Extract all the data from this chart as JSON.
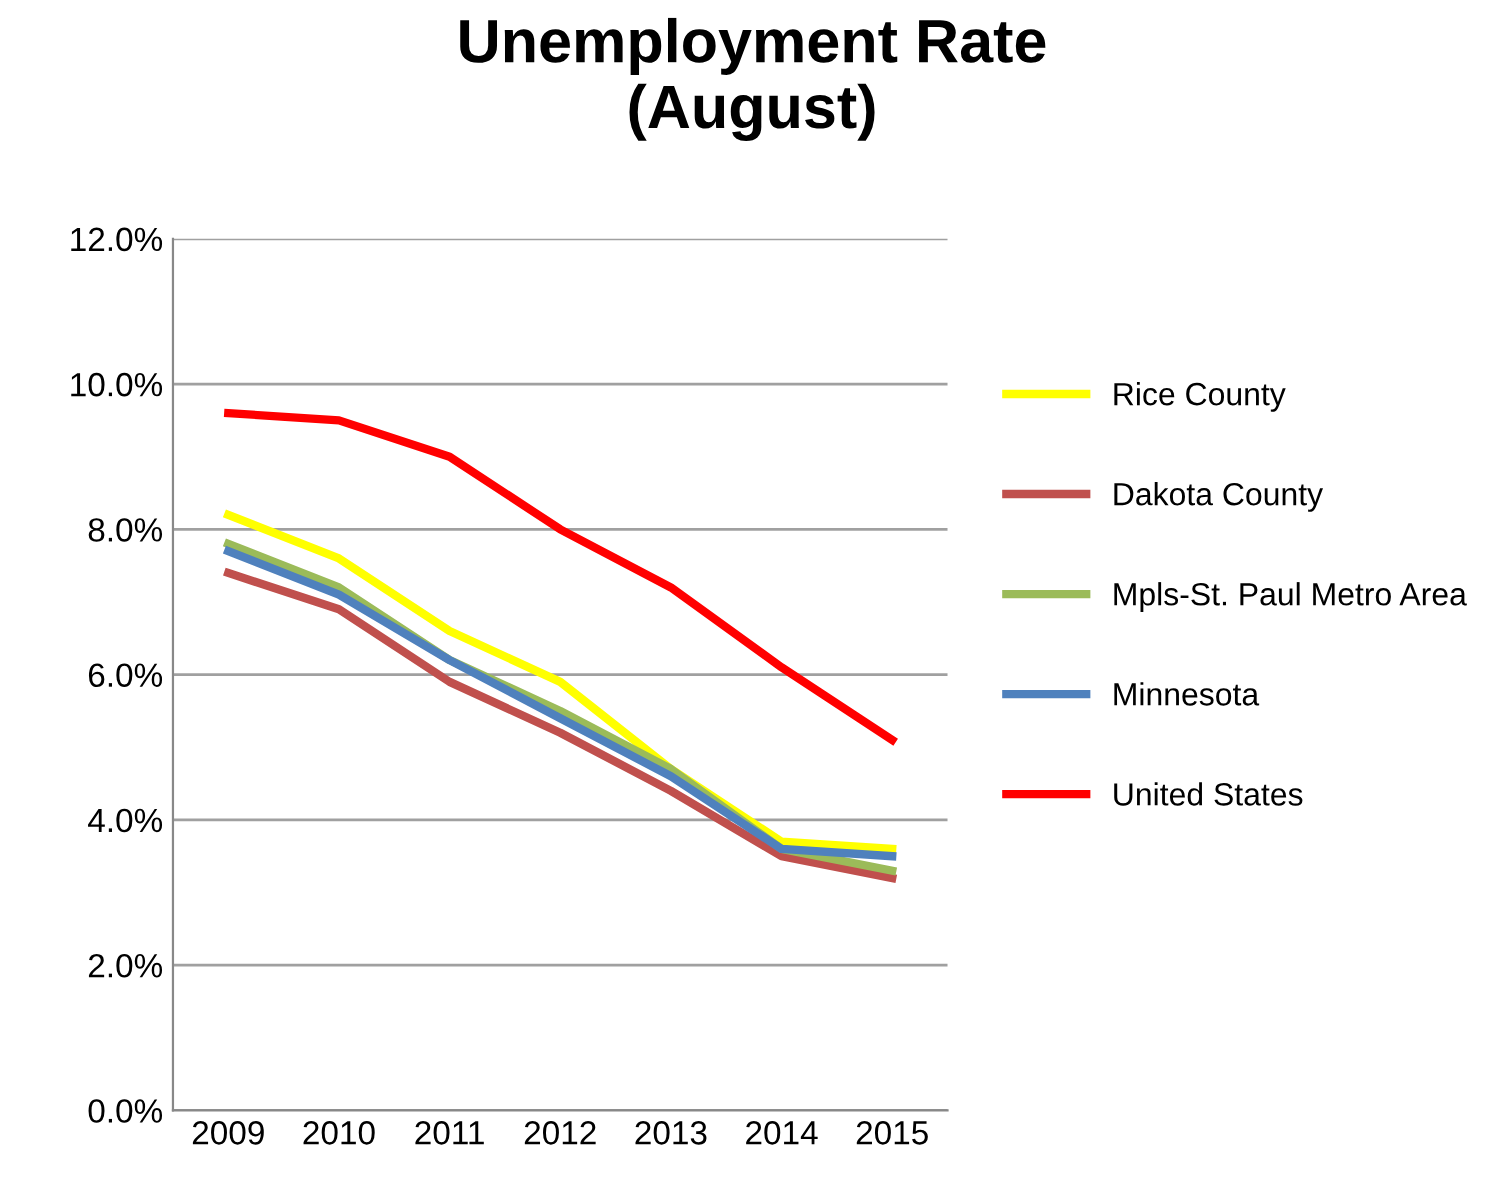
{
  "chart_data": {
    "type": "line",
    "title": "Unemployment Rate\n(August)",
    "categories": [
      "2009",
      "2010",
      "2011",
      "2012",
      "2013",
      "2014",
      "2015"
    ],
    "series": [
      {
        "name": "Rice County",
        "color": "#ffff00",
        "values": [
          8.2,
          7.6,
          6.6,
          5.9,
          4.7,
          3.7,
          3.6
        ]
      },
      {
        "name": "Dakota County",
        "color": "#c0504d",
        "values": [
          7.4,
          6.9,
          5.9,
          5.2,
          4.4,
          3.5,
          3.2
        ]
      },
      {
        "name": "Mpls-St. Paul Metro Area",
        "color": "#9bbb59",
        "values": [
          7.8,
          7.2,
          6.2,
          5.5,
          4.7,
          3.6,
          3.3
        ]
      },
      {
        "name": "Minnesota",
        "color": "#4f81bd",
        "values": [
          7.7,
          7.1,
          6.2,
          5.4,
          4.6,
          3.6,
          3.5
        ]
      },
      {
        "name": "United States",
        "color": "#ff0000",
        "values": [
          9.6,
          9.5,
          9.0,
          8.0,
          7.2,
          6.1,
          5.1
        ]
      }
    ],
    "ylim": [
      0,
      12
    ],
    "yticks": [
      {
        "value": 0,
        "label": "0.0%"
      },
      {
        "value": 2,
        "label": "2.0%"
      },
      {
        "value": 4,
        "label": "4.0%"
      },
      {
        "value": 6,
        "label": "6.0%"
      },
      {
        "value": 8,
        "label": "8.0%"
      },
      {
        "value": 10,
        "label": "10.0%"
      },
      {
        "value": 12,
        "label": "12.0%"
      }
    ],
    "grid": "y",
    "legend": "right",
    "marker": "none",
    "line_style": "solid"
  }
}
